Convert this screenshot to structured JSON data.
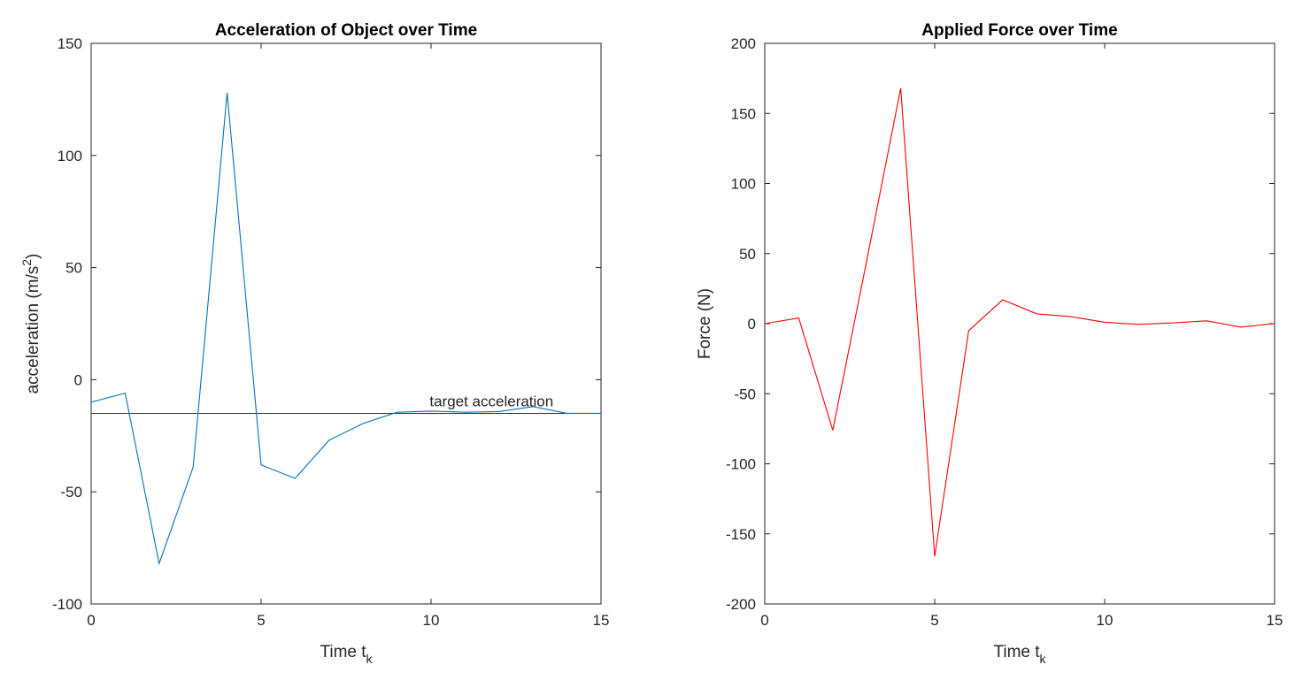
{
  "chart_data": [
    {
      "type": "line",
      "title": "Acceleration of Object over Time",
      "xlabel": "Time t",
      "xlabel_sub": "k",
      "ylabel": "acceleration (m/s",
      "ylabel_sup": "2",
      "ylabel_end": ")",
      "xlim": [
        0,
        15
      ],
      "ylim": [
        -100,
        150
      ],
      "xticks": [
        0,
        5,
        10,
        15
      ],
      "yticks": [
        -100,
        -50,
        0,
        50,
        100,
        150
      ],
      "grid": false,
      "series": [
        {
          "color": "#0072BD",
          "x": [
            0,
            1,
            2,
            3,
            4,
            5,
            6,
            7,
            8,
            9,
            10,
            11,
            12,
            13,
            14,
            15
          ],
          "y": [
            -10,
            -6,
            -82,
            -39,
            128,
            -38,
            -44,
            -27,
            -19.5,
            -14.5,
            -14,
            -14.5,
            -14.2,
            -12,
            -15,
            -15
          ]
        }
      ],
      "reference_line": {
        "y": -15,
        "color": "#333333",
        "label": "target acceleration",
        "label_x": 13.6
      }
    },
    {
      "type": "line",
      "title": "Applied Force over Time",
      "xlabel": "Time t",
      "xlabel_sub": "k",
      "ylabel": "Force (N)",
      "xlim": [
        0,
        15
      ],
      "ylim": [
        -200,
        200
      ],
      "xticks": [
        0,
        5,
        10,
        15
      ],
      "yticks": [
        -200,
        -150,
        -100,
        -50,
        0,
        50,
        100,
        150,
        200
      ],
      "grid": false,
      "series": [
        {
          "color": "#FF0000",
          "x": [
            0,
            1,
            2,
            3,
            4,
            5,
            6,
            7,
            8,
            9,
            10,
            11,
            12,
            13,
            14,
            15
          ],
          "y": [
            0,
            4,
            -76,
            45,
            168,
            -166,
            -5,
            17,
            7,
            5,
            1,
            -0.5,
            0.5,
            2,
            -2.5,
            0
          ]
        }
      ]
    }
  ]
}
